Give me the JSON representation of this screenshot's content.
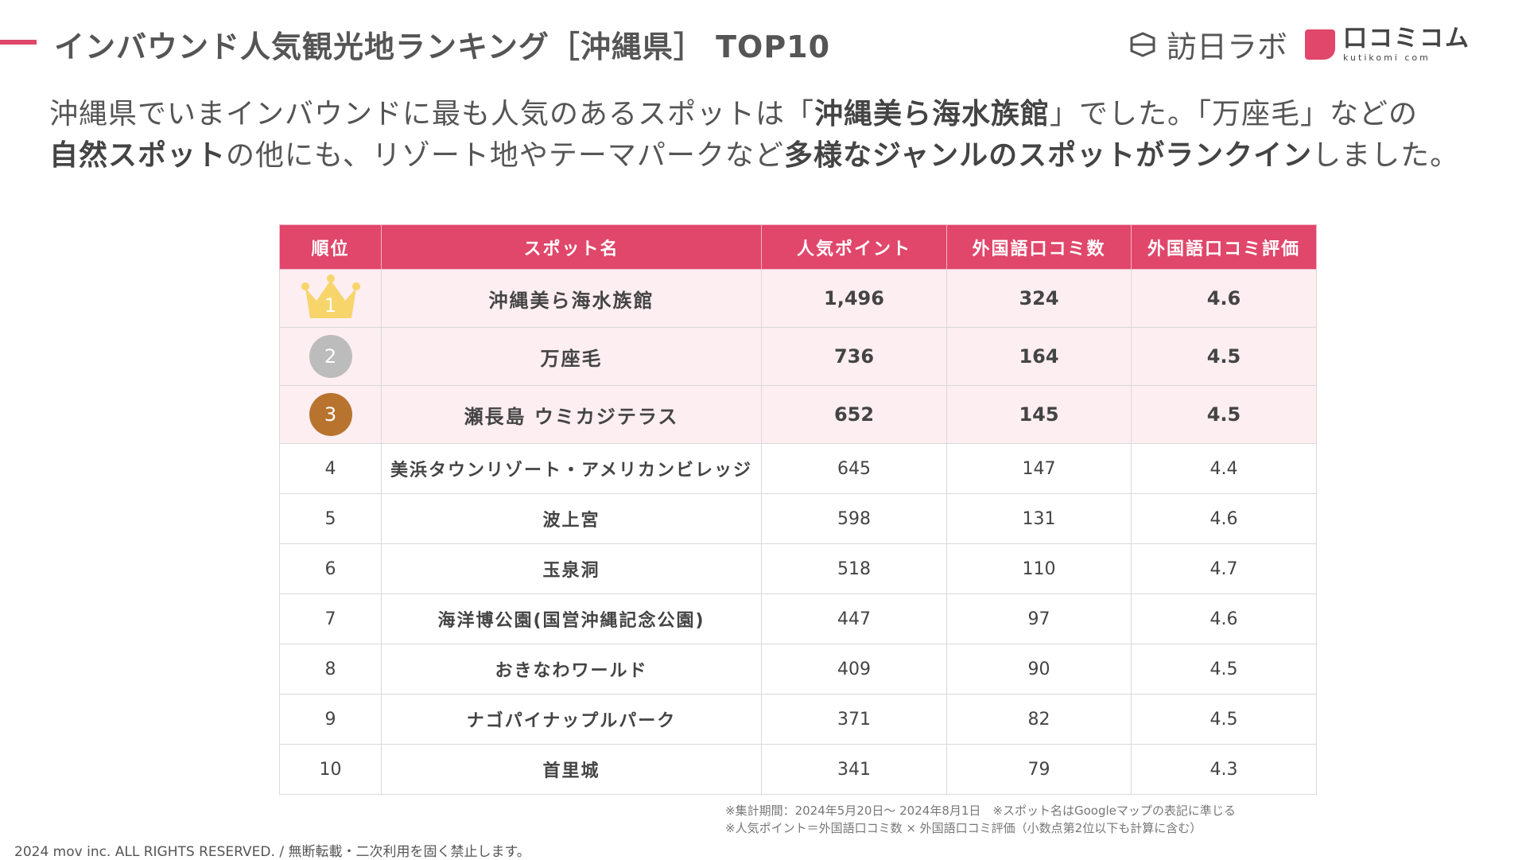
{
  "header": {
    "title": "インバウンド人気観光地ランキング［沖縄県］ TOP10",
    "logo_houni": "訪日ラボ",
    "logo_kuchi": "口コミコム",
    "logo_kuchi_sub": "kutikomi com"
  },
  "lead": {
    "p1": "沖縄県でいまインバウンドに最も人気のあるスポットは「",
    "b1": "沖縄美ら海水族館",
    "p2": "」でした。「万座毛」などの",
    "b2": "自然スポット",
    "p3": "の他にも、リゾート地やテーマパークなど",
    "b3": "多様なジャンルのスポットがランクイン",
    "p4": "しました。"
  },
  "table": {
    "headers": [
      "順位",
      "スポット名",
      "人気ポイント",
      "外国語口コミ数",
      "外国語口コミ評価"
    ],
    "rows": [
      {
        "rank": "1",
        "name": "沖縄美ら海水族館",
        "points": "1,496",
        "reviews": "324",
        "rating": "4.6"
      },
      {
        "rank": "2",
        "name": "万座毛",
        "points": "736",
        "reviews": "164",
        "rating": "4.5"
      },
      {
        "rank": "3",
        "name": "瀬長島 ウミカジテラス",
        "points": "652",
        "reviews": "145",
        "rating": "4.5"
      },
      {
        "rank": "4",
        "name": "美浜タウンリゾート・アメリカンビレッジ",
        "points": "645",
        "reviews": "147",
        "rating": "4.4"
      },
      {
        "rank": "5",
        "name": "波上宮",
        "points": "598",
        "reviews": "131",
        "rating": "4.6"
      },
      {
        "rank": "6",
        "name": "玉泉洞",
        "points": "518",
        "reviews": "110",
        "rating": "4.7"
      },
      {
        "rank": "7",
        "name": "海洋博公園(国営沖縄記念公園)",
        "points": "447",
        "reviews": "97",
        "rating": "4.6"
      },
      {
        "rank": "8",
        "name": "おきなわワールド",
        "points": "409",
        "reviews": "90",
        "rating": "4.5"
      },
      {
        "rank": "9",
        "name": "ナゴパイナップルパーク",
        "points": "371",
        "reviews": "82",
        "rating": "4.5"
      },
      {
        "rank": "10",
        "name": "首里城",
        "points": "341",
        "reviews": "79",
        "rating": "4.3"
      }
    ]
  },
  "notes": {
    "line1": "※集計期間：2024年5月20日〜 2024年8月1日　※スポット名はGoogleマップの表記に準じる",
    "line2": "※人気ポイント＝外国語口コミ数 × 外国語口コミ評価（小数点第2位以下も計算に含む）"
  },
  "footer": {
    "copyright": "2024 mov inc. ALL RIGHTS RESERVED. / 無断転載・二次利用を固く禁止します。"
  },
  "colors": {
    "accent": "#e0476b",
    "top_row_bg": "#fdeef2",
    "gold": "#f7d56b",
    "silver": "#bcbcbc",
    "bronze": "#b8742e"
  }
}
